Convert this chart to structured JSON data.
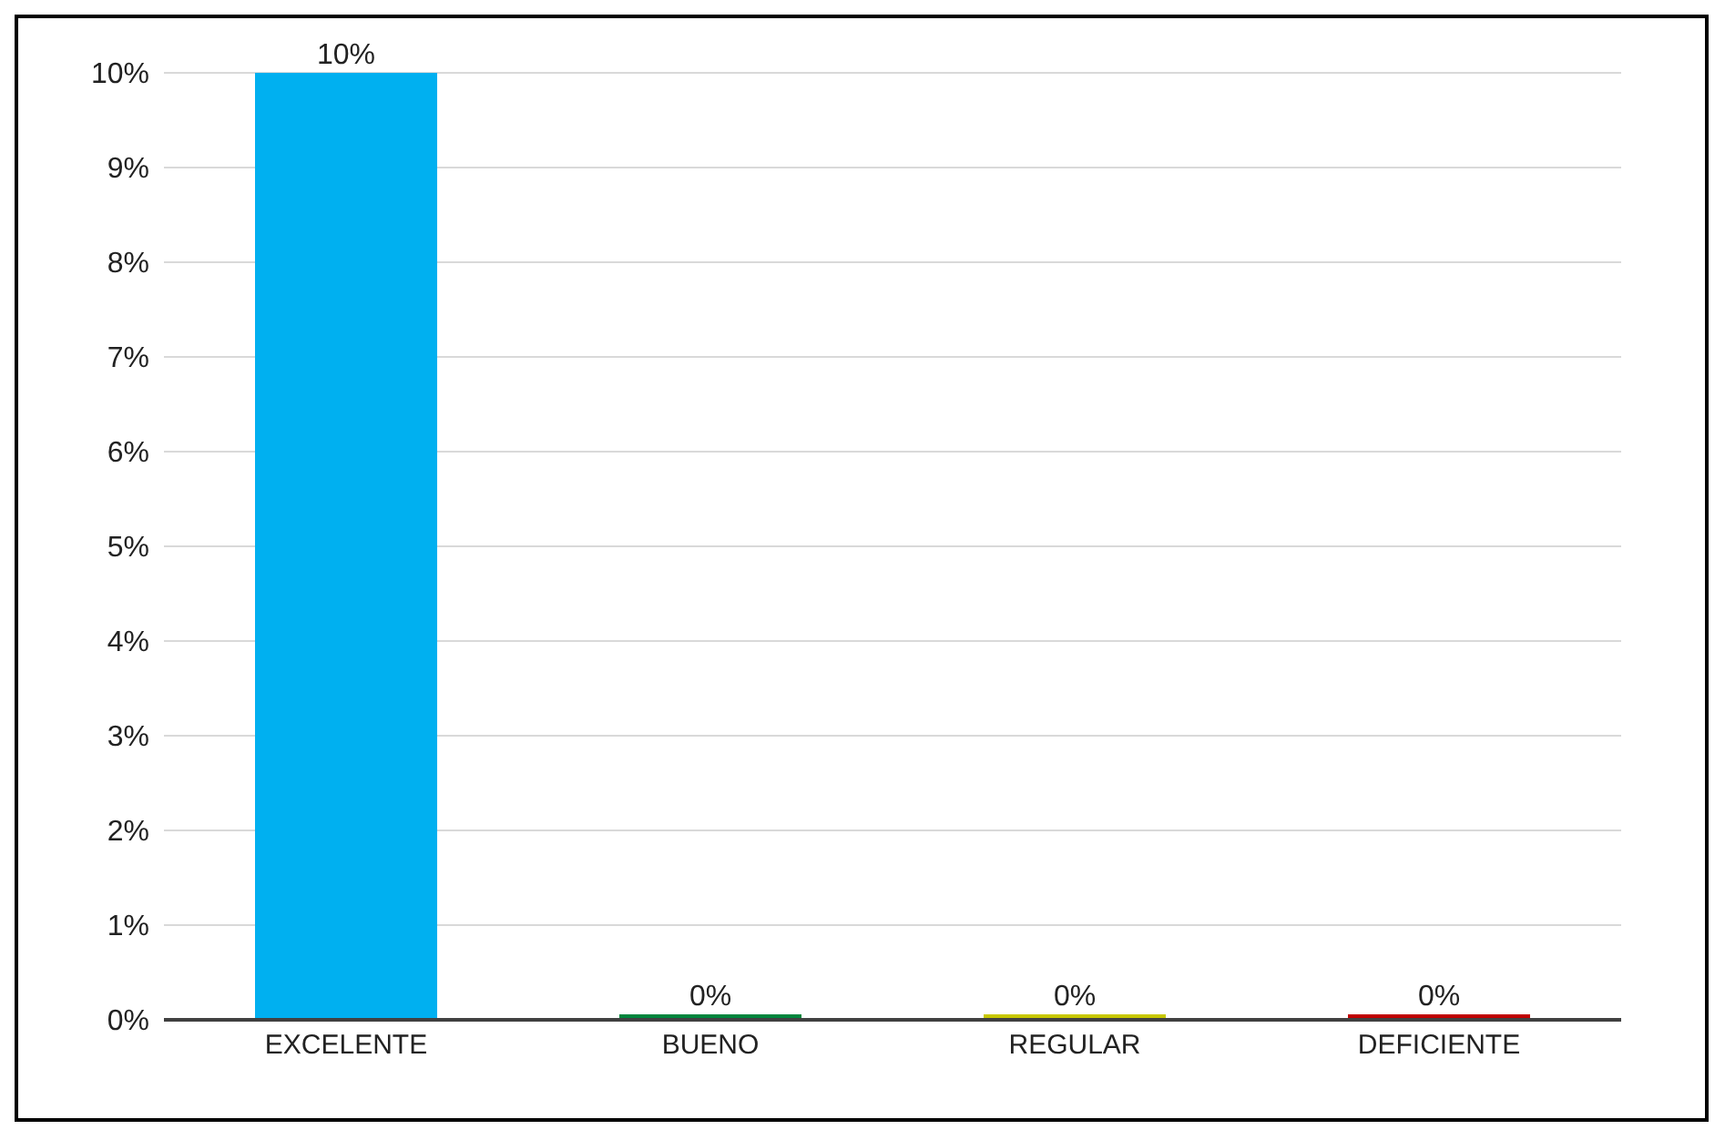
{
  "chart_data": {
    "type": "bar",
    "categories": [
      "EXCELENTE",
      "BUENO",
      "REGULAR",
      "DEFICIENTE"
    ],
    "values": [
      10,
      0,
      0,
      0
    ],
    "colors": [
      "#00b0f0",
      "#00863d",
      "#c8c800",
      "#c00000"
    ],
    "value_labels": [
      "10%",
      "0%",
      "0%",
      "0%"
    ],
    "ylim": [
      0,
      10
    ],
    "yticks": [
      {
        "value": 0,
        "label": "0%"
      },
      {
        "value": 1,
        "label": "1%"
      },
      {
        "value": 2,
        "label": "2%"
      },
      {
        "value": 3,
        "label": "3%"
      },
      {
        "value": 4,
        "label": "4%"
      },
      {
        "value": 5,
        "label": "5%"
      },
      {
        "value": 6,
        "label": "6%"
      },
      {
        "value": 7,
        "label": "7%"
      },
      {
        "value": 8,
        "label": "8%"
      },
      {
        "value": 9,
        "label": "9%"
      },
      {
        "value": 10,
        "label": "10%"
      }
    ],
    "grid": "y"
  }
}
